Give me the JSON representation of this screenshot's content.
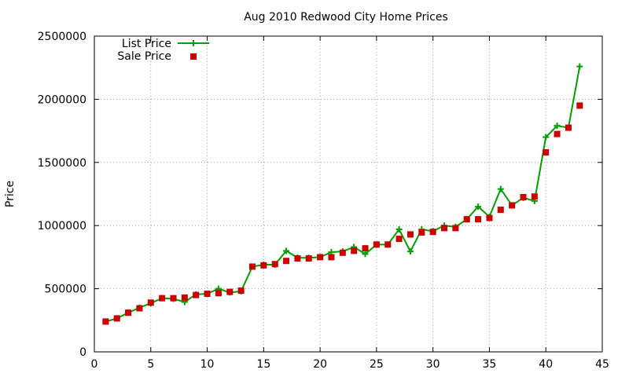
{
  "chart_data": {
    "type": "line",
    "title": "Aug 2010 Redwood City Home Prices",
    "xlabel": "",
    "ylabel": "Price",
    "xlim": [
      0,
      45
    ],
    "ylim": [
      0,
      2500000
    ],
    "xticks": [
      0,
      5,
      10,
      15,
      20,
      25,
      30,
      35,
      40,
      45
    ],
    "yticks": [
      0,
      500000,
      1000000,
      1500000,
      2000000,
      2500000
    ],
    "grid": true,
    "legend_position": "top-left",
    "series": [
      {
        "name": "List Price",
        "style": "line-with-plus-markers",
        "color": "#00a000",
        "x": [
          1,
          2,
          3,
          4,
          5,
          6,
          7,
          8,
          9,
          10,
          11,
          12,
          13,
          14,
          15,
          16,
          17,
          18,
          19,
          20,
          21,
          22,
          23,
          24,
          25,
          26,
          27,
          28,
          29,
          30,
          31,
          32,
          33,
          34,
          35,
          36,
          37,
          38,
          39,
          40,
          41,
          42,
          43
        ],
        "values": [
          240000,
          265000,
          310000,
          350000,
          385000,
          425000,
          420000,
          395000,
          455000,
          460000,
          500000,
          470000,
          480000,
          675000,
          690000,
          690000,
          800000,
          745000,
          745000,
          750000,
          790000,
          795000,
          830000,
          775000,
          850000,
          850000,
          970000,
          795000,
          970000,
          955000,
          1000000,
          990000,
          1050000,
          1150000,
          1070000,
          1290000,
          1160000,
          1220000,
          1195000,
          1700000,
          1790000,
          1775000,
          2260000
        ]
      },
      {
        "name": "Sale Price",
        "style": "square-markers",
        "color": "#cc0000",
        "x": [
          1,
          2,
          3,
          4,
          5,
          6,
          7,
          8,
          9,
          10,
          11,
          12,
          13,
          14,
          15,
          16,
          17,
          18,
          19,
          20,
          21,
          22,
          23,
          24,
          25,
          26,
          27,
          28,
          29,
          30,
          31,
          32,
          33,
          34,
          35,
          36,
          37,
          38,
          39,
          40,
          41,
          42,
          43
        ],
        "values": [
          240000,
          265000,
          310000,
          345000,
          390000,
          425000,
          425000,
          430000,
          450000,
          460000,
          465000,
          475000,
          485000,
          675000,
          685000,
          695000,
          720000,
          740000,
          740000,
          750000,
          750000,
          785000,
          800000,
          820000,
          850000,
          850000,
          895000,
          930000,
          945000,
          950000,
          980000,
          980000,
          1050000,
          1050000,
          1060000,
          1125000,
          1160000,
          1225000,
          1230000,
          1580000,
          1725000,
          1775000,
          1950000
        ]
      }
    ]
  }
}
